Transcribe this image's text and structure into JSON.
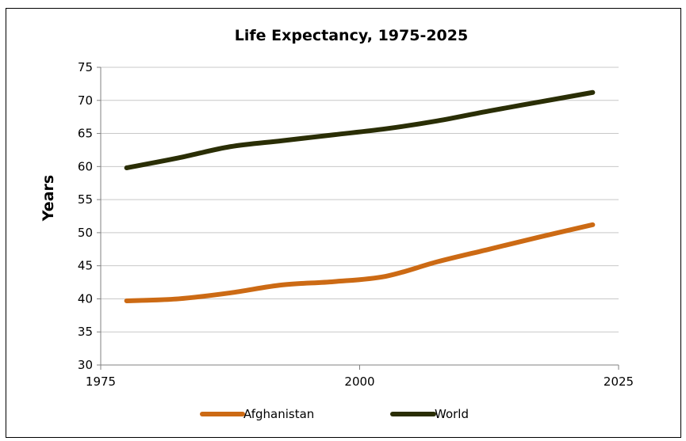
{
  "chart_data": {
    "type": "line",
    "title": "Life Expectancy, 1975-2025",
    "xlabel": "",
    "ylabel": "Years",
    "xlim": [
      1975,
      2025
    ],
    "ylim": [
      30,
      75
    ],
    "xticks": [
      "1975",
      "2000",
      "2025"
    ],
    "yticks": [
      "30",
      "35",
      "40",
      "45",
      "50",
      "55",
      "60",
      "65",
      "70",
      "75"
    ],
    "grid": "horizontal",
    "legend": "bottom",
    "series": [
      {
        "name": "Afghanistan",
        "color": "#CC6A14",
        "x": [
          1977.5,
          1982.5,
          1987.5,
          1992.5,
          1997.5,
          2002.5,
          2007.5,
          2012.5,
          2017.5,
          2022.5
        ],
        "y": [
          39.7,
          40.0,
          40.9,
          42.1,
          42.6,
          43.4,
          45.6,
          47.5,
          49.4,
          51.2
        ]
      },
      {
        "name": "World",
        "color": "#2A2E05",
        "x": [
          1977.5,
          1982.5,
          1987.5,
          1992.5,
          1997.5,
          2002.5,
          2007.5,
          2012.5,
          2017.5,
          2022.5
        ],
        "y": [
          59.8,
          61.3,
          63.0,
          63.9,
          64.8,
          65.7,
          66.9,
          68.4,
          69.8,
          71.2
        ]
      }
    ]
  }
}
